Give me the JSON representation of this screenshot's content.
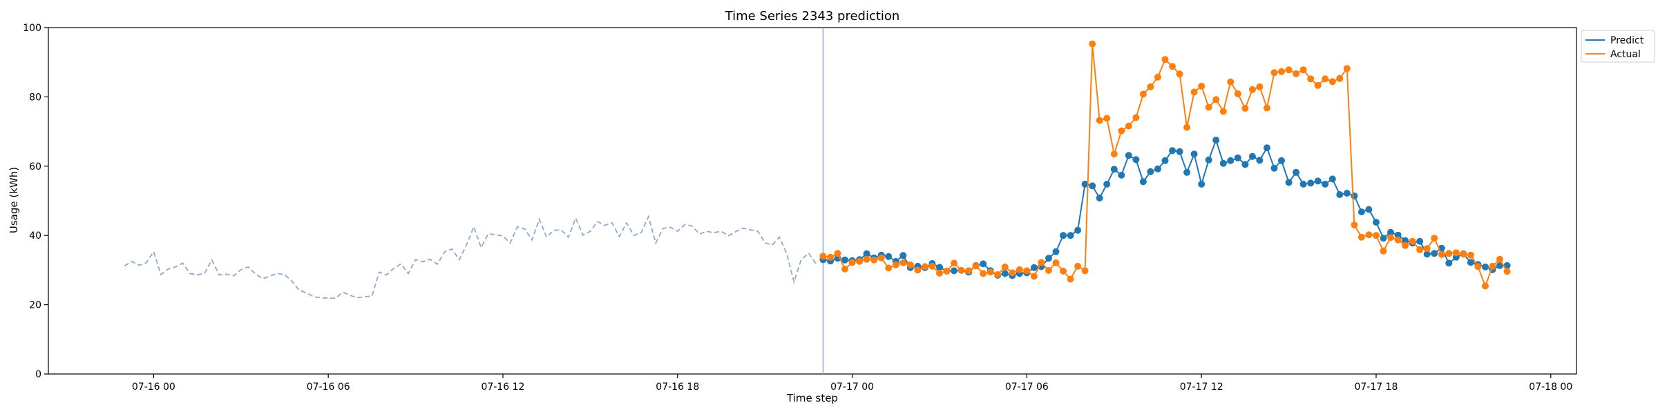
{
  "chart_data": {
    "type": "line",
    "title": "Time Series 2343 prediction",
    "xlabel": "Time step",
    "ylabel": "Usage (kWh)",
    "ylim": [
      0,
      100
    ],
    "xlim": [
      "07-15 20:23",
      "07-18 00:53"
    ],
    "x_ticks": [
      {
        "label": "07-16 00",
        "value": "07-16 00:00"
      },
      {
        "label": "07-16 06",
        "value": "07-16 06:00"
      },
      {
        "label": "07-16 12",
        "value": "07-16 12:00"
      },
      {
        "label": "07-16 18",
        "value": "07-16 18:00"
      },
      {
        "label": "07-17 00",
        "value": "07-17 00:00"
      },
      {
        "label": "07-17 06",
        "value": "07-17 06:00"
      },
      {
        "label": "07-17 12",
        "value": "07-17 12:00"
      },
      {
        "label": "07-17 18",
        "value": "07-17 18:00"
      },
      {
        "label": "07-18 00",
        "value": "07-18 00:00"
      }
    ],
    "y_ticks": [
      0,
      20,
      40,
      60,
      80,
      100
    ],
    "grid": false,
    "legend_position": "outside-top-right",
    "forecast_start": "07-16 23:00",
    "history": {
      "style": "dashed",
      "color": "#8fa8cc",
      "start": "07-15 23:00",
      "interval_minutes": 15,
      "values": [
        31.2,
        32.5,
        31.4,
        32.1,
        35.3,
        28.7,
        30.3,
        30.9,
        32.0,
        29.0,
        28.6,
        29.1,
        32.9,
        28.6,
        28.8,
        28.3,
        30.1,
        30.9,
        28.9,
        27.5,
        28.3,
        29.0,
        28.7,
        26.8,
        24.2,
        23.4,
        22.3,
        22.0,
        21.9,
        21.9,
        23.6,
        22.7,
        22.0,
        22.3,
        22.5,
        29.4,
        28.6,
        30.5,
        31.8,
        29.0,
        33.0,
        32.4,
        33.1,
        31.7,
        35.3,
        36.1,
        33.0,
        37.3,
        42.5,
        36.5,
        40.5,
        40.2,
        39.8,
        37.8,
        42.5,
        41.9,
        38.7,
        44.7,
        39.5,
        41.5,
        41.6,
        39.5,
        45.0,
        40.1,
        41.2,
        44.0,
        42.9,
        43.6,
        39.7,
        43.6,
        40.0,
        40.8,
        45.4,
        37.8,
        42.0,
        42.4,
        41.2,
        43.1,
        42.7,
        40.4,
        41.2,
        40.8,
        41.2,
        39.9,
        41.1,
        42.1,
        41.6,
        41.3,
        37.9,
        37.2,
        39.5,
        34.7,
        26.6,
        33.0,
        34.9,
        31.9
      ]
    },
    "series": [
      {
        "name": "Predict",
        "color": "#1f77b4",
        "start": "07-16 23:00",
        "interval_minutes": 15,
        "values": [
          33.0,
          32.6,
          33.4,
          32.9,
          32.7,
          33.0,
          34.7,
          33.5,
          34.3,
          33.9,
          32.5,
          34.2,
          30.7,
          31.1,
          30.7,
          31.9,
          30.8,
          29.7,
          29.8,
          29.9,
          29.4,
          31.3,
          31.8,
          29.8,
          28.5,
          29.0,
          28.4,
          29.0,
          29.2,
          30.7,
          31.0,
          33.4,
          35.3,
          40.0,
          40.0,
          41.5,
          54.8,
          54.3,
          50.8,
          54.8,
          59.1,
          57.4,
          63.1,
          61.9,
          55.5,
          58.4,
          59.2,
          61.6,
          64.5,
          64.2,
          58.2,
          63.5,
          54.8,
          61.8,
          67.5,
          60.8,
          61.6,
          62.4,
          60.5,
          62.8,
          61.7,
          65.3,
          59.4,
          61.6,
          55.3,
          58.2,
          54.8,
          55.1,
          55.7,
          54.8,
          56.3,
          51.8,
          52.2,
          51.4,
          46.8,
          47.5,
          43.8,
          39.2,
          40.9,
          40.1,
          38.5,
          37.8,
          38.3,
          34.6,
          34.8,
          36.3,
          32.0,
          33.7,
          34.7,
          32.2,
          31.6,
          30.9,
          30.1,
          31.3,
          31.3
        ]
      },
      {
        "name": "Actual",
        "color": "#ff7f0e",
        "start": "07-16 23:00",
        "interval_minutes": 15,
        "values": [
          34.0,
          33.7,
          34.8,
          30.3,
          32.2,
          32.5,
          33.1,
          32.9,
          33.5,
          30.6,
          31.5,
          32.1,
          31.5,
          30.0,
          31.0,
          31.1,
          29.1,
          29.7,
          32.0,
          29.9,
          29.8,
          31.2,
          29.0,
          29.4,
          28.7,
          30.9,
          29.2,
          30.1,
          29.8,
          28.2,
          32.2,
          29.9,
          32.1,
          29.7,
          27.4,
          31.1,
          29.8,
          95.3,
          73.2,
          73.8,
          63.5,
          70.2,
          71.6,
          74.0,
          80.8,
          82.9,
          85.7,
          90.8,
          88.8,
          86.6,
          71.2,
          81.4,
          83.1,
          77.0,
          79.2,
          75.8,
          84.3,
          80.9,
          76.7,
          82.1,
          82.9,
          76.8,
          87.0,
          87.3,
          87.8,
          86.7,
          87.8,
          85.2,
          83.3,
          85.2,
          84.4,
          85.3,
          88.2,
          43.0,
          39.5,
          40.2,
          40.0,
          35.5,
          39.4,
          38.7,
          37.1,
          38.3,
          35.9,
          36.2,
          39.2,
          34.5,
          34.8,
          35.0,
          34.6,
          34.3,
          31.0,
          25.4,
          31.1,
          33.1,
          29.6
        ]
      }
    ]
  }
}
